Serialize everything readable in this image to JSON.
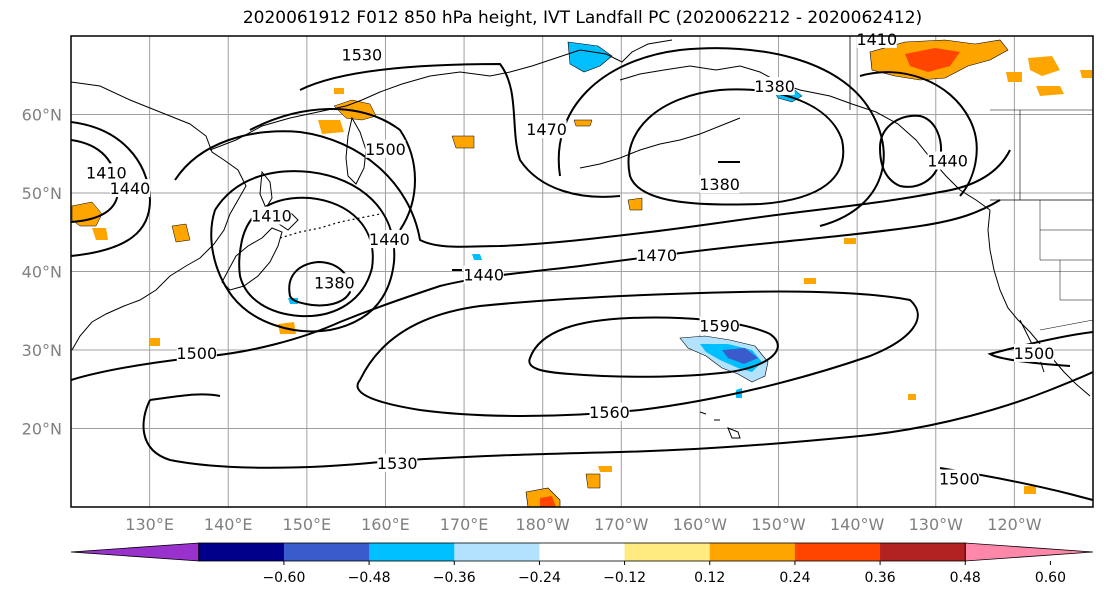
{
  "title": "2020061912 F012 850 hPa height, IVT Landfall PC (2020062212 - 2020062412)",
  "map": {
    "lat_labels": [
      "60°N",
      "50°N",
      "40°N",
      "30°N",
      "20°N"
    ],
    "lat_values": [
      60,
      50,
      40,
      30,
      20
    ],
    "lon_labels": [
      "130°E",
      "140°E",
      "150°E",
      "160°E",
      "170°E",
      "180°W",
      "170°W",
      "160°W",
      "150°W",
      "140°W",
      "130°W",
      "120°W"
    ],
    "lon_values": [
      130,
      140,
      150,
      160,
      170,
      180,
      190,
      200,
      210,
      220,
      230,
      240
    ],
    "extent": {
      "lon_min": 120,
      "lon_max": 250,
      "lat_min": 10,
      "lat_max": 70
    },
    "contour_labels": [
      {
        "text": "1530",
        "lon": 157,
        "lat": 67.5
      },
      {
        "text": "1500",
        "lon": 160,
        "lat": 55.5
      },
      {
        "text": "1470",
        "lon": 180.5,
        "lat": 58
      },
      {
        "text": "1410",
        "lon": 124.5,
        "lat": 52.5
      },
      {
        "text": "1440",
        "lon": 127.5,
        "lat": 50.5
      },
      {
        "text": "1410",
        "lon": 145.5,
        "lat": 47
      },
      {
        "text": "1440",
        "lon": 160.5,
        "lat": 44
      },
      {
        "text": "1380",
        "lon": 153.5,
        "lat": 38.5
      },
      {
        "text": "1440",
        "lon": 172.5,
        "lat": 39.5
      },
      {
        "text": "1470",
        "lon": 194.5,
        "lat": 42
      },
      {
        "text": "1380",
        "lon": 209.5,
        "lat": 63.5
      },
      {
        "text": "1380",
        "lon": 202.5,
        "lat": 51
      },
      {
        "text": "1440",
        "lon": 231.5,
        "lat": 54
      },
      {
        "text": "1410",
        "lon": 222.5,
        "lat": 69.5
      },
      {
        "text": "1590",
        "lon": 202.5,
        "lat": 33
      },
      {
        "text": "1500",
        "lon": 136,
        "lat": 29.5
      },
      {
        "text": "1560",
        "lon": 188.5,
        "lat": 22
      },
      {
        "text": "1530",
        "lon": 161.5,
        "lat": 15.5
      },
      {
        "text": "1500",
        "lon": 233,
        "lat": 13.5
      },
      {
        "text": "1500",
        "lon": 242.5,
        "lat": 29.5
      }
    ]
  },
  "colorbar": {
    "colors": [
      "#9932cc",
      "#00008b",
      "#3a5bcc",
      "#00bfff",
      "#b3e2ff",
      "#ffffff",
      "#ffeb80",
      "#ffa500",
      "#ff4500",
      "#b22222",
      "#ff88aa"
    ],
    "tick_labels": [
      "−0.60",
      "−0.48",
      "−0.36",
      "−0.24",
      "−0.12",
      "0.12",
      "0.24",
      "0.36",
      "0.48",
      "0.60"
    ]
  },
  "colors": {
    "frame": "#000000",
    "grid": "#a0a0a0",
    "contour": "#000000",
    "coast": "#000000"
  }
}
